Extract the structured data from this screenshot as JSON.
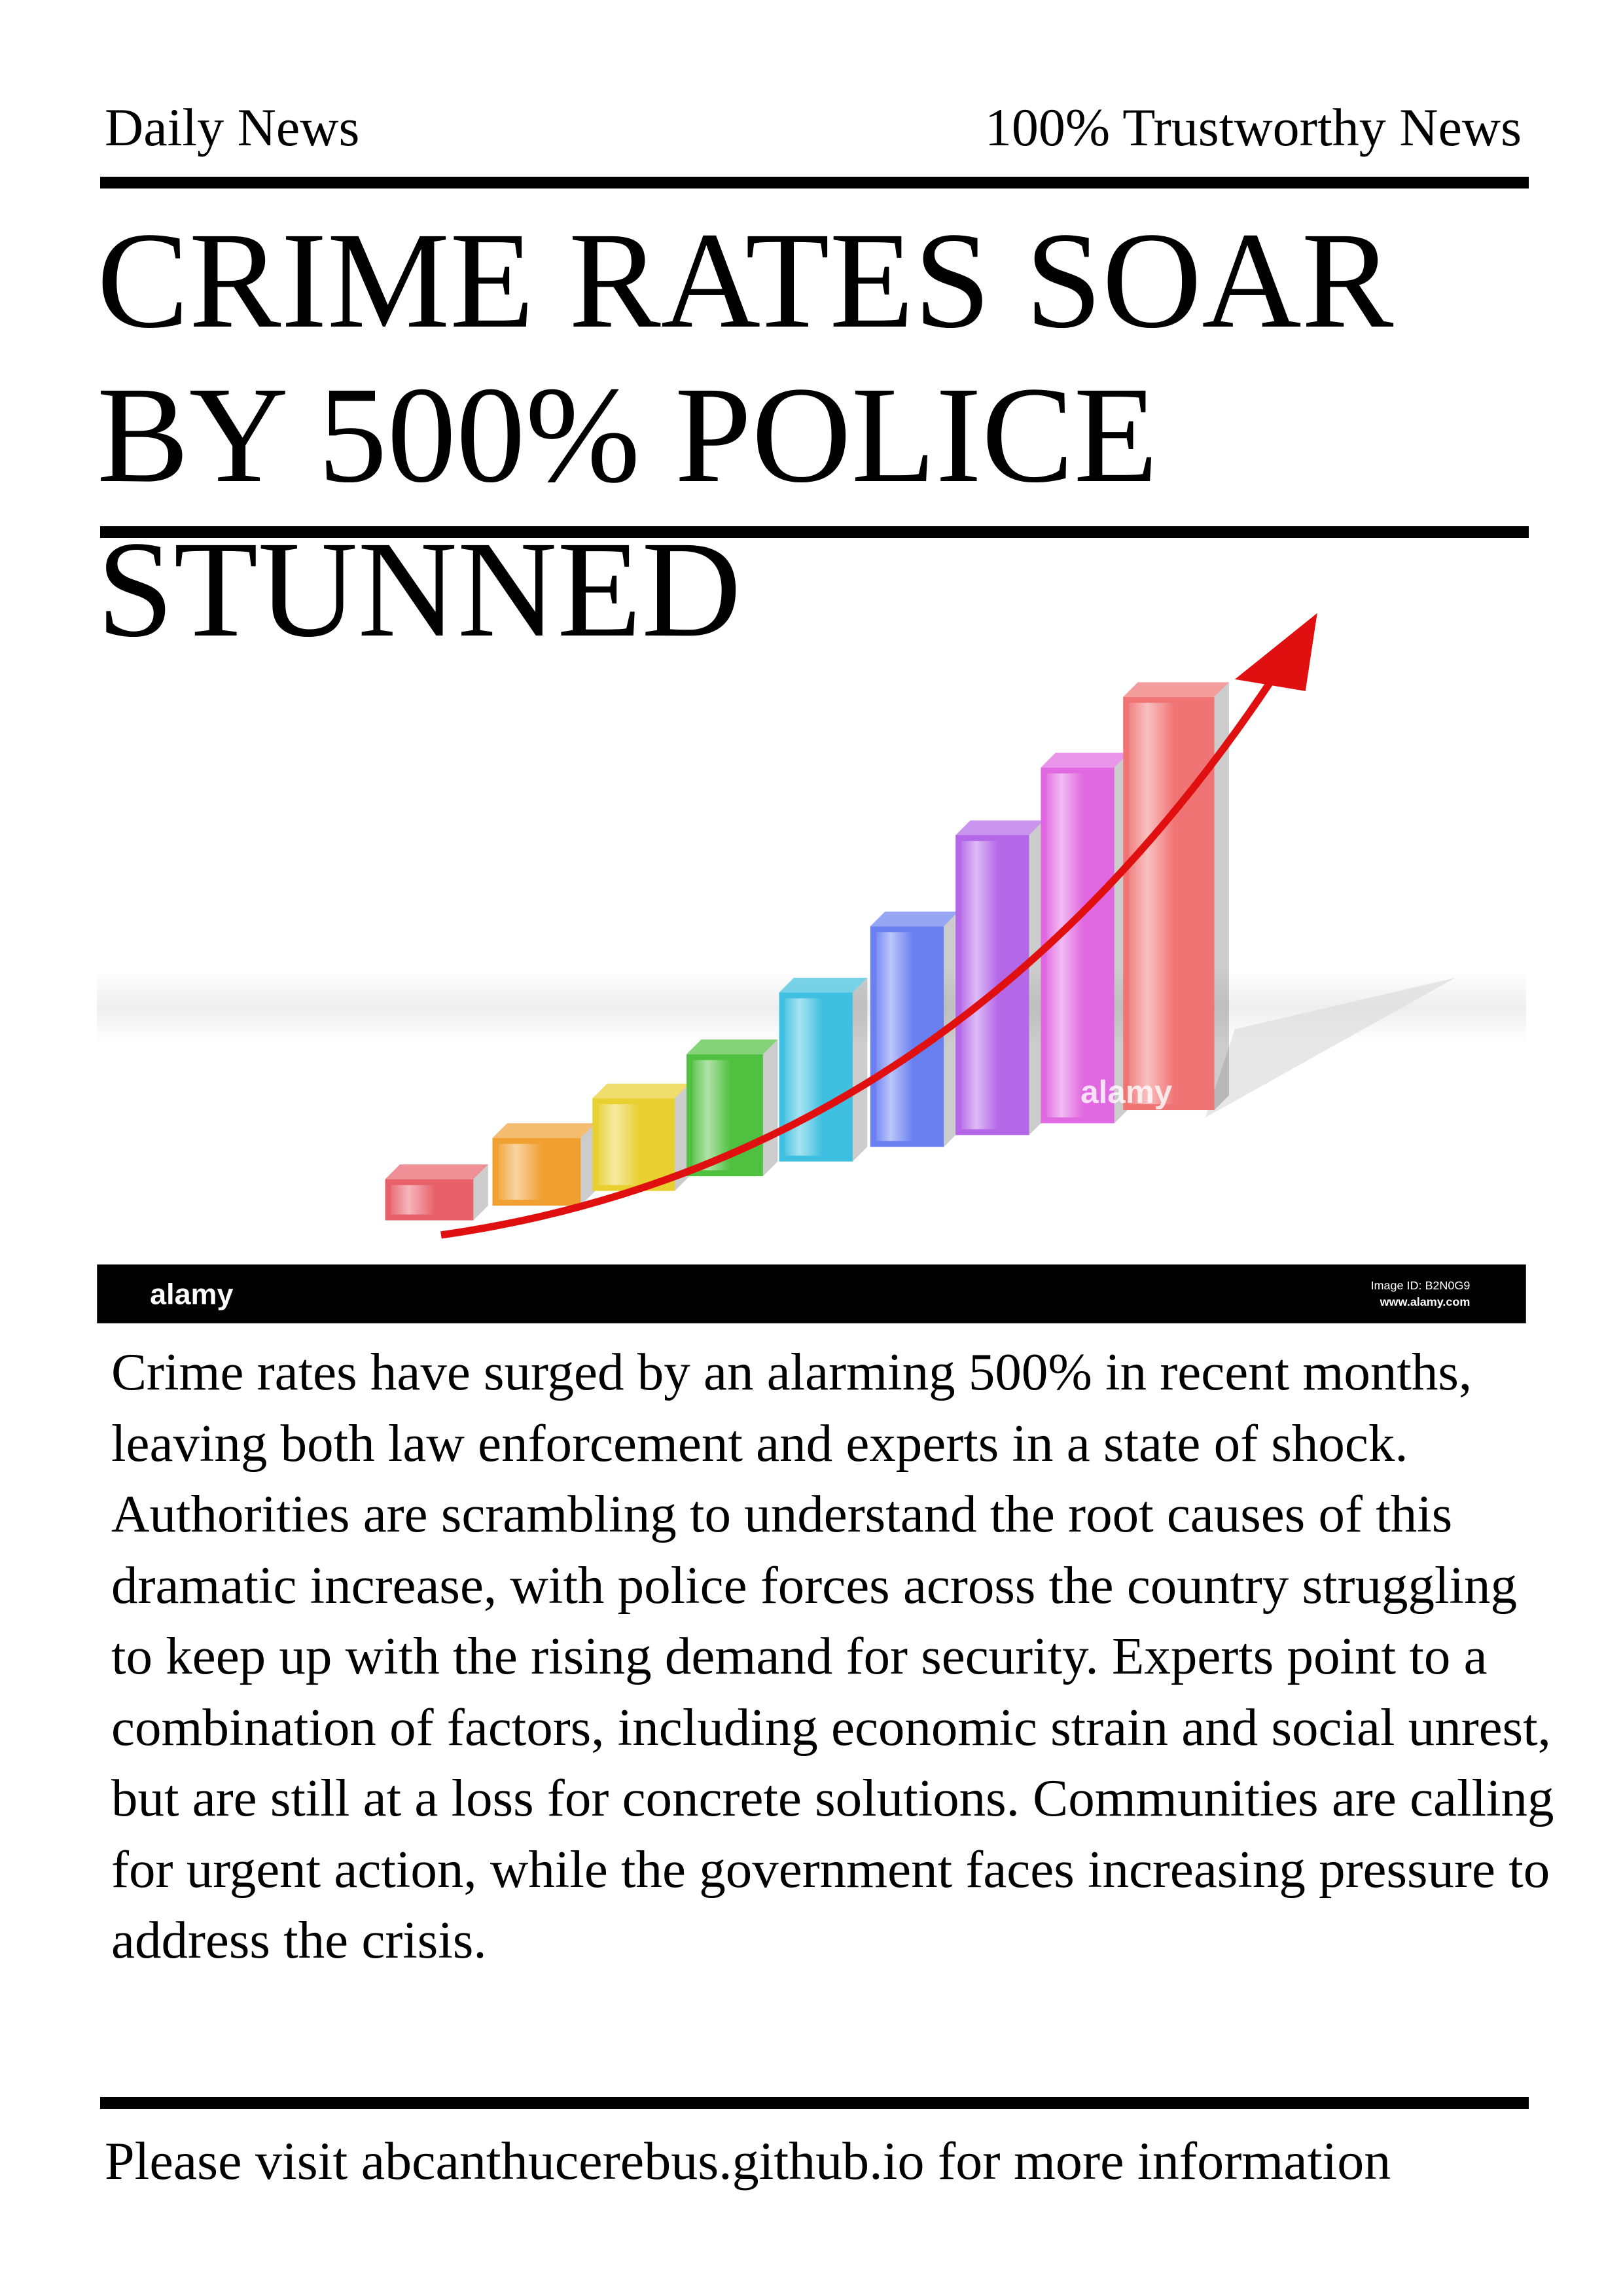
{
  "header": {
    "left": "Daily News",
    "right": "100% Trustworthy News"
  },
  "headline": "CRIME RATES SOAR BY 500% POLICE STUNNED",
  "image": {
    "watermark": "alamy",
    "credit": "alamy",
    "image_id": "Image ID: B2N0G9",
    "url": "www.alamy.com"
  },
  "article": {
    "body": "Crime rates have surged by an alarming 500% in recent months, leaving both law enforcement and experts in a state of shock. Authorities are scrambling to understand the root causes of this dramatic increase, with police forces across the country struggling to keep up with the rising demand for security. Experts point to a combination of factors, including economic strain and social unrest, but are still at a loss for concrete solutions. Communities are calling for urgent action, while the government faces increasing pressure to address the crisis."
  },
  "footer": "Please visit abcanthucerebus.github.io for more information"
}
